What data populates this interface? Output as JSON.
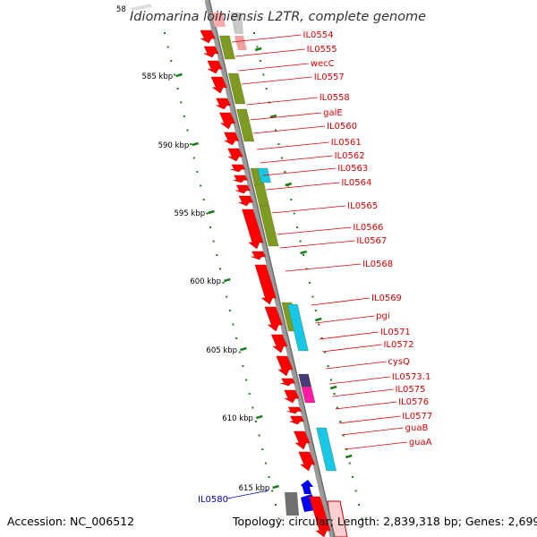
{
  "header": {
    "title": "Idiomarina loihiensis L2TR, complete genome",
    "cut_tick": "58"
  },
  "footer": {
    "accession": "Accession: NC_006512",
    "topology": "Topology: circular; Length: 2,839,318 bp; Genes: 2,699"
  },
  "colors": {
    "cds": "#ff0000",
    "backbone": "#909090",
    "olive": "#7f9a22",
    "cyan": "#18c6e6",
    "purple": "#4a3a7a",
    "magenta": "#ff1aa6",
    "blue": "#0000ee",
    "gray": "#707070",
    "tick_green": "#1a7f1a",
    "label_red": "#dd0000",
    "label_blue": "#0000cc"
  },
  "scale_ticks": [
    {
      "label": "585 kbp"
    },
    {
      "label": "590 kbp"
    },
    {
      "label": "595 kbp"
    },
    {
      "label": "600 kbp"
    },
    {
      "label": "605 kbp"
    },
    {
      "label": "610 kbp"
    },
    {
      "label": "615 kbp"
    }
  ],
  "gene_labels": [
    {
      "text": "IL0554",
      "color": "red"
    },
    {
      "text": "IL0555",
      "color": "red"
    },
    {
      "text": "wecC",
      "color": "red"
    },
    {
      "text": "IL0557",
      "color": "red"
    },
    {
      "text": "IL0558",
      "color": "red"
    },
    {
      "text": "galE",
      "color": "red"
    },
    {
      "text": "IL0560",
      "color": "red"
    },
    {
      "text": "IL0561",
      "color": "red"
    },
    {
      "text": "IL0562",
      "color": "red"
    },
    {
      "text": "IL0563",
      "color": "red"
    },
    {
      "text": "IL0564",
      "color": "red"
    },
    {
      "text": "IL0565",
      "color": "red"
    },
    {
      "text": "IL0566",
      "color": "red"
    },
    {
      "text": "IL0567",
      "color": "red"
    },
    {
      "text": "IL0568",
      "color": "red"
    },
    {
      "text": "IL0569",
      "color": "red"
    },
    {
      "text": "pgi",
      "color": "red"
    },
    {
      "text": "IL0571",
      "color": "red"
    },
    {
      "text": "IL0572",
      "color": "red"
    },
    {
      "text": "cysQ",
      "color": "red"
    },
    {
      "text": "IL0573.1",
      "color": "red"
    },
    {
      "text": "IL0575",
      "color": "red"
    },
    {
      "text": "IL0576",
      "color": "red"
    },
    {
      "text": "IL0577",
      "color": "red"
    },
    {
      "text": "guaB",
      "color": "red"
    },
    {
      "text": "guaA",
      "color": "red"
    },
    {
      "text": "IL0580",
      "color": "blue"
    }
  ]
}
